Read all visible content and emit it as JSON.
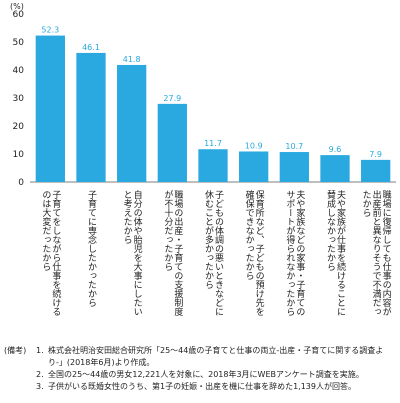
{
  "chart_data": {
    "type": "bar",
    "unit_label": "(%)",
    "ylim": [
      0,
      60
    ],
    "yticks": [
      0,
      10,
      20,
      30,
      40,
      50,
      60
    ],
    "grid": false,
    "bar_color": "#29a9df",
    "categories": [
      "子育てをしながら仕事を続けるのは大変だったから",
      "子育てに専念したかったから",
      "自分の体や胎児を大事にしたいと考えたから",
      "職場の出産・子育ての支援制度が不十分だったから",
      "子どもの体調の悪いときなどに休むことが多かったから",
      "保育所など、子どもの預け先を確保できなかったから",
      "夫や家族などの家事・子育てのサポートが得られなかったから",
      "夫や家族が仕事を続けることに賛成しなかったから",
      "職場に復帰しても仕事の内容が出産前と異なりそうで不満だったから"
    ],
    "values": [
      52.3,
      46.1,
      41.8,
      27.9,
      11.7,
      10.9,
      10.7,
      9.6,
      7.9
    ]
  },
  "notes": {
    "label": "(備考)",
    "items": [
      {
        "num": "1.",
        "text": "株式会社明治安田総合研究所「25〜44歳の子育てと仕事の両立-出産・子育てに関する調査より-」(2018年6月)より作成。"
      },
      {
        "num": "2.",
        "text": "全国の25〜44歳の男女12,221人を対象に、2018年3月にWEBアンケート調査を実施。"
      },
      {
        "num": "3.",
        "text": "子供がいる既婚女性のうち、第1子の妊娠・出産を機に仕事を辞めた1,139人が回答。"
      }
    ]
  }
}
